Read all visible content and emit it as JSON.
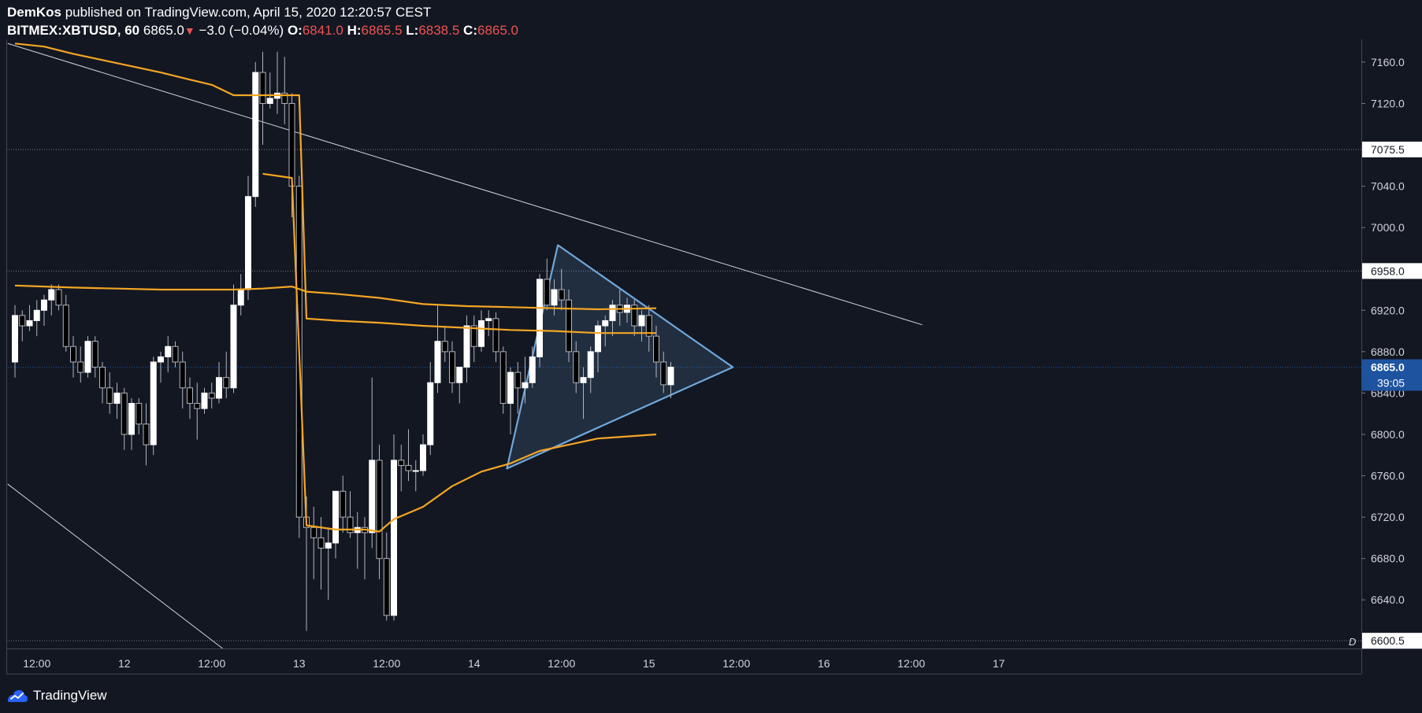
{
  "header": {
    "author": "DemKos",
    "published_text": "published on TradingView.com, April 15, 2020 12:20:57 CEST",
    "symbol": "BITMEX:XBTUSD, 60",
    "last": "6865.0",
    "change": "−3.0 (−0.04%)",
    "o_label": "O:",
    "o_value": "6841.0",
    "h_label": "H:",
    "h_value": "6865.5",
    "l_label": "L:",
    "l_value": "6838.5",
    "c_label": "C:",
    "c_value": "6865.0"
  },
  "footer": {
    "brand": "TradingView",
    "logo_icon": "tradingview-logo-icon"
  },
  "colors": {
    "background": "#131722",
    "candle_up": "#ffffff",
    "candle_down": "#000000",
    "wick": "#b2b5be",
    "ma": "#f5a623",
    "pattern": "#6fa8dc",
    "trendline": "#d1d4dc",
    "price_badge": "#1e53a0"
  },
  "chart_data": {
    "type": "candlestick",
    "interval": "60",
    "ylim": [
      6593,
      7182
    ],
    "y_ticks": [
      "7160.0",
      "7120.0",
      "7040.0",
      "7000.0",
      "6920.0",
      "6880.0",
      "6840.0",
      "6800.0",
      "6760.0",
      "6720.0",
      "6680.0",
      "6640.0"
    ],
    "x_ticks": [
      {
        "label": "12:00",
        "i": 3
      },
      {
        "label": "12",
        "i": 15
      },
      {
        "label": "12:00",
        "i": 27
      },
      {
        "label": "13",
        "i": 39
      },
      {
        "label": "12:00",
        "i": 51
      },
      {
        "label": "14",
        "i": 63
      },
      {
        "label": "12:00",
        "i": 75
      },
      {
        "label": "15",
        "i": 87
      },
      {
        "label": "12:00",
        "i": 99
      },
      {
        "label": "16",
        "i": 111
      },
      {
        "label": "12:00",
        "i": 123
      },
      {
        "label": "17",
        "i": 135
      }
    ],
    "horizontal_levels": [
      {
        "label": "7075.5",
        "value": 7075.5
      },
      {
        "label": "6958.0",
        "value": 6958.0
      },
      {
        "label": "6600.5",
        "value": 6600.5
      }
    ],
    "current_price": {
      "label": "6865.0",
      "value": 6865.0,
      "countdown": "39:05"
    },
    "scale_mark": "D",
    "candles": [
      [
        6870,
        6925,
        6855,
        6915
      ],
      [
        6915,
        6920,
        6890,
        6905
      ],
      [
        6905,
        6925,
        6900,
        6910
      ],
      [
        6910,
        6930,
        6895,
        6920
      ],
      [
        6920,
        6935,
        6905,
        6930
      ],
      [
        6930,
        6945,
        6915,
        6940
      ],
      [
        6940,
        6945,
        6920,
        6925
      ],
      [
        6925,
        6935,
        6880,
        6885
      ],
      [
        6885,
        6895,
        6855,
        6870
      ],
      [
        6870,
        6885,
        6850,
        6860
      ],
      [
        6860,
        6895,
        6855,
        6890
      ],
      [
        6890,
        6895,
        6855,
        6865
      ],
      [
        6865,
        6870,
        6830,
        6845
      ],
      [
        6845,
        6860,
        6820,
        6830
      ],
      [
        6830,
        6850,
        6815,
        6840
      ],
      [
        6840,
        6845,
        6785,
        6800
      ],
      [
        6800,
        6835,
        6785,
        6830
      ],
      [
        6830,
        6835,
        6800,
        6810
      ],
      [
        6810,
        6830,
        6770,
        6790
      ],
      [
        6790,
        6875,
        6780,
        6870
      ],
      [
        6870,
        6880,
        6850,
        6875
      ],
      [
        6875,
        6895,
        6860,
        6885
      ],
      [
        6885,
        6890,
        6865,
        6870
      ],
      [
        6870,
        6880,
        6825,
        6845
      ],
      [
        6845,
        6855,
        6815,
        6830
      ],
      [
        6830,
        6850,
        6795,
        6825
      ],
      [
        6825,
        6845,
        6820,
        6840
      ],
      [
        6840,
        6850,
        6825,
        6835
      ],
      [
        6835,
        6870,
        6830,
        6855
      ],
      [
        6855,
        6880,
        6835,
        6845
      ],
      [
        6845,
        6945,
        6840,
        6925
      ],
      [
        6925,
        6955,
        6915,
        6940
      ],
      [
        6940,
        7050,
        6930,
        7030
      ],
      [
        7030,
        7160,
        7020,
        7150
      ],
      [
        7150,
        7170,
        7080,
        7120
      ],
      [
        7120,
        7150,
        7115,
        7125
      ],
      [
        7125,
        7170,
        7110,
        7130
      ],
      [
        7130,
        7165,
        7100,
        7120
      ],
      [
        7120,
        7130,
        7010,
        7040
      ],
      [
        7040,
        7050,
        6700,
        6720
      ],
      [
        6720,
        6740,
        6610,
        6710
      ],
      [
        6710,
        6730,
        6660,
        6700
      ],
      [
        6700,
        6720,
        6650,
        6690
      ],
      [
        6690,
        6710,
        6640,
        6695
      ],
      [
        6695,
        6745,
        6680,
        6745
      ],
      [
        6745,
        6760,
        6705,
        6720
      ],
      [
        6720,
        6745,
        6700,
        6705
      ],
      [
        6705,
        6725,
        6670,
        6710
      ],
      [
        6710,
        6720,
        6660,
        6705
      ],
      [
        6705,
        6855,
        6690,
        6775
      ],
      [
        6775,
        6790,
        6660,
        6680
      ],
      [
        6680,
        6705,
        6620,
        6625
      ],
      [
        6625,
        6800,
        6620,
        6775
      ],
      [
        6775,
        6790,
        6745,
        6770
      ],
      [
        6770,
        6805,
        6755,
        6765
      ],
      [
        6765,
        6775,
        6745,
        6765
      ],
      [
        6765,
        6800,
        6760,
        6790
      ],
      [
        6790,
        6870,
        6780,
        6850
      ],
      [
        6850,
        6925,
        6840,
        6890
      ],
      [
        6890,
        6905,
        6870,
        6880
      ],
      [
        6880,
        6890,
        6840,
        6850
      ],
      [
        6850,
        6865,
        6830,
        6865
      ],
      [
        6865,
        6915,
        6850,
        6905
      ],
      [
        6905,
        6915,
        6870,
        6885
      ],
      [
        6885,
        6920,
        6880,
        6910
      ],
      [
        6910,
        6920,
        6895,
        6912
      ],
      [
        6912,
        6918,
        6870,
        6880
      ],
      [
        6880,
        6885,
        6820,
        6830
      ],
      [
        6830,
        6865,
        6800,
        6860
      ],
      [
        6860,
        6870,
        6820,
        6845
      ],
      [
        6845,
        6875,
        6830,
        6850
      ],
      [
        6850,
        6885,
        6845,
        6875
      ],
      [
        6875,
        6955,
        6865,
        6950
      ],
      [
        6950,
        6970,
        6920,
        6925
      ],
      [
        6925,
        6950,
        6915,
        6940
      ],
      [
        6940,
        6960,
        6920,
        6930
      ],
      [
        6930,
        6940,
        6870,
        6880
      ],
      [
        6880,
        6890,
        6840,
        6850
      ],
      [
        6850,
        6865,
        6815,
        6855
      ],
      [
        6855,
        6885,
        6840,
        6880
      ],
      [
        6880,
        6910,
        6860,
        6905
      ],
      [
        6905,
        6915,
        6885,
        6910
      ],
      [
        6910,
        6930,
        6895,
        6925
      ],
      [
        6925,
        6940,
        6905,
        6918
      ],
      [
        6918,
        6932,
        6908,
        6925
      ],
      [
        6925,
        6930,
        6895,
        6905
      ],
      [
        6905,
        6920,
        6890,
        6915
      ],
      [
        6915,
        6925,
        6880,
        6895
      ],
      [
        6895,
        6905,
        6855,
        6870
      ],
      [
        6870,
        6880,
        6840,
        6848
      ],
      [
        6848,
        6870,
        6835,
        6865
      ]
    ],
    "moving_averages": [
      {
        "color": "#f5a623",
        "points": [
          [
            0,
            7178
          ],
          [
            4,
            7175
          ],
          [
            8,
            7168
          ],
          [
            12,
            7162
          ],
          [
            16,
            7156
          ],
          [
            20,
            7150
          ],
          [
            24,
            7143
          ],
          [
            27,
            7138
          ],
          [
            30,
            7128
          ],
          [
            34,
            7128
          ],
          [
            38,
            7128
          ],
          [
            39,
            7128
          ],
          [
            40,
            6912
          ],
          [
            44,
            6910
          ],
          [
            50,
            6908
          ],
          [
            56,
            6905
          ],
          [
            62,
            6903
          ],
          [
            68,
            6901
          ],
          [
            74,
            6900
          ],
          [
            80,
            6898
          ],
          [
            88,
            6898
          ]
        ]
      },
      {
        "color": "#f5a623",
        "points": [
          [
            0,
            6944
          ],
          [
            4,
            6943
          ],
          [
            8,
            6942
          ],
          [
            14,
            6941
          ],
          [
            20,
            6940
          ],
          [
            26,
            6940
          ],
          [
            30,
            6940
          ],
          [
            34,
            6941
          ],
          [
            38,
            6943
          ],
          [
            40,
            6938
          ],
          [
            44,
            6936
          ],
          [
            50,
            6932
          ],
          [
            56,
            6926
          ],
          [
            62,
            6924
          ],
          [
            68,
            6923
          ],
          [
            74,
            6922
          ],
          [
            80,
            6921
          ],
          [
            88,
            6922
          ]
        ]
      },
      {
        "color": "#f5a623",
        "points": [
          [
            34,
            7052
          ],
          [
            38,
            7048
          ],
          [
            40,
            6712
          ],
          [
            44,
            6708
          ],
          [
            48,
            6708
          ],
          [
            50,
            6706
          ],
          [
            52,
            6718
          ],
          [
            56,
            6730
          ],
          [
            60,
            6750
          ],
          [
            64,
            6764
          ],
          [
            68,
            6772
          ],
          [
            72,
            6784
          ],
          [
            76,
            6790
          ],
          [
            80,
            6796
          ],
          [
            84,
            6798
          ],
          [
            88,
            6800
          ]
        ]
      }
    ],
    "patterns": [
      {
        "type": "triangle",
        "points": [
          [
            67.5,
            6767
          ],
          [
            74.5,
            6983
          ],
          [
            98.5,
            6865
          ]
        ]
      }
    ],
    "trendlines": [
      {
        "from": [
          -1,
          7178
        ],
        "to": [
          124.5,
          6906
        ]
      },
      {
        "from": [
          -1,
          6752
        ],
        "to": [
          28.5,
          6593
        ]
      }
    ]
  }
}
